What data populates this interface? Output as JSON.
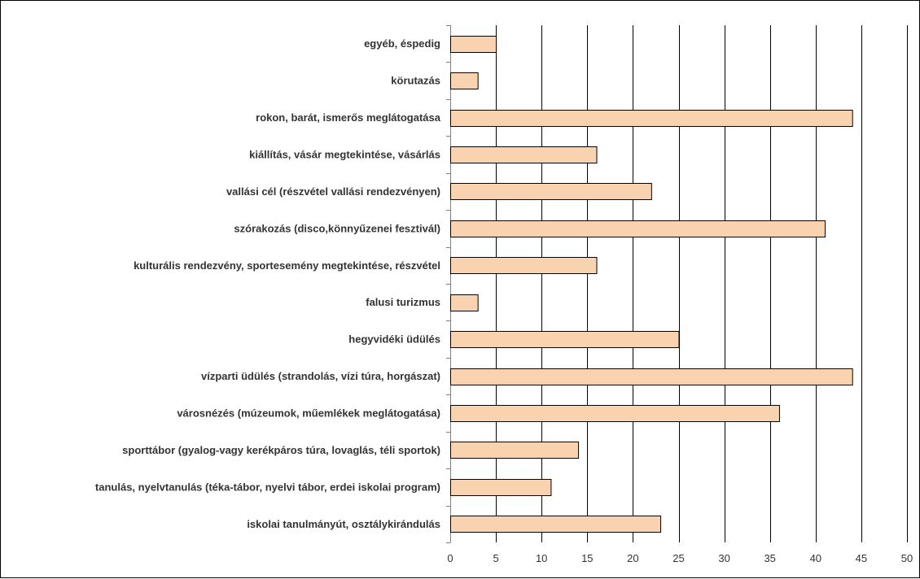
{
  "chart_data": {
    "type": "bar",
    "orientation": "horizontal",
    "categories": [
      "egyéb, éspedig",
      "körutazás",
      "rokon, barát, ismerős meglátogatása",
      "kiállítás, vásár megtekintése, vásárlás",
      "vallási cél (részvétel vallási rendezvényen)",
      "szórakozás (disco,könnyűzenei fesztivál)",
      "kulturális rendezvény, sportesemény megtekintése, részvétel",
      "falusi turizmus",
      "hegyvidéki üdülés",
      "vízparti üdülés (strandolás, vízi túra, horgászat)",
      "városnézés (múzeumok, műemlékek meglátogatása)",
      "sporttábor (gyalog-vagy kerékpáros túra, lovaglás, téli sportok)",
      "tanulás, nyelvtanulás (téka-tábor, nyelvi tábor, erdei iskolai program)",
      "iskolai tanulmányút, osztálykirándulás"
    ],
    "values": [
      5,
      3,
      44,
      16,
      22,
      41,
      16,
      3,
      25,
      44,
      36,
      14,
      11,
      23
    ],
    "xlim": [
      0,
      50
    ],
    "xticks": [
      0,
      5,
      10,
      15,
      20,
      25,
      30,
      35,
      40,
      45,
      50
    ],
    "title": "",
    "xlabel": "",
    "ylabel": "",
    "grid": "vertical",
    "legend": "none",
    "colors": {
      "bar_fill": "#F9D3B0",
      "bar_stroke": "#000000",
      "grid": "#000000",
      "text": "#333333"
    }
  }
}
